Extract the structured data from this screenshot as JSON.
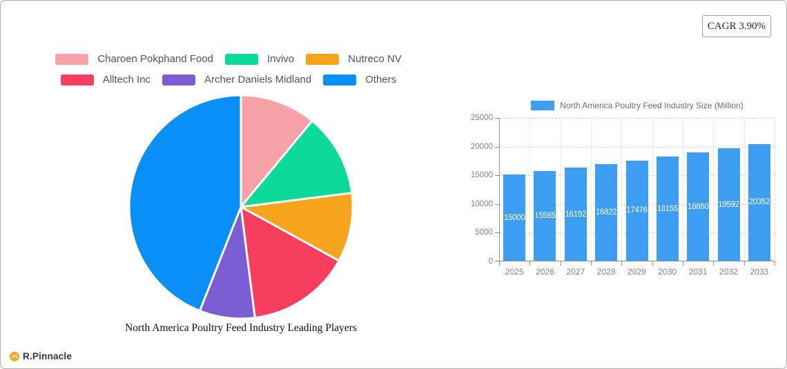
{
  "card": {
    "cagr_badge": "CAGR 3.90%"
  },
  "footer": {
    "brand": "R.Pinnacle",
    "logo_icon": "pinnacle-mountain-icon",
    "logo_color": "#F5A623"
  },
  "chart_data": [
    {
      "type": "pie",
      "title": "North America Poultry Feed Industry Leading Players",
      "legend_position": "top",
      "direction": "clockwise",
      "start_angle_deg": 0,
      "values_estimated_from_angles": true,
      "slices": [
        {
          "label": "Charoen Pokphand Food",
          "value": 11,
          "color": "#F8A2A8"
        },
        {
          "label": "Invivo",
          "value": 12,
          "color": "#0CDA97"
        },
        {
          "label": "Nutreco NV",
          "value": 10,
          "color": "#F6A41C"
        },
        {
          "label": "Alltech Inc",
          "value": 15,
          "color": "#F83E5E"
        },
        {
          "label": "Archer Daniels Midland",
          "value": 8,
          "color": "#7B5ED1"
        },
        {
          "label": "Others",
          "value": 44,
          "color": "#0A8FF7"
        }
      ]
    },
    {
      "type": "bar",
      "legend": "North America Poultry Feed Industry Size (Million)",
      "legend_position": "top",
      "categories": [
        "2025",
        "2026",
        "2027",
        "2028",
        "2029",
        "2030",
        "2031",
        "2032",
        "2033"
      ],
      "values": [
        15000,
        15585,
        16192,
        16822,
        17476,
        18155,
        18860,
        19592,
        20352
      ],
      "bar_color": "#3D9DF1",
      "value_label_color": "#FFFFFF",
      "ylim": [
        0,
        25000
      ],
      "yticks": [
        0,
        5000,
        10000,
        15000,
        20000,
        25000
      ],
      "grid": true
    }
  ]
}
